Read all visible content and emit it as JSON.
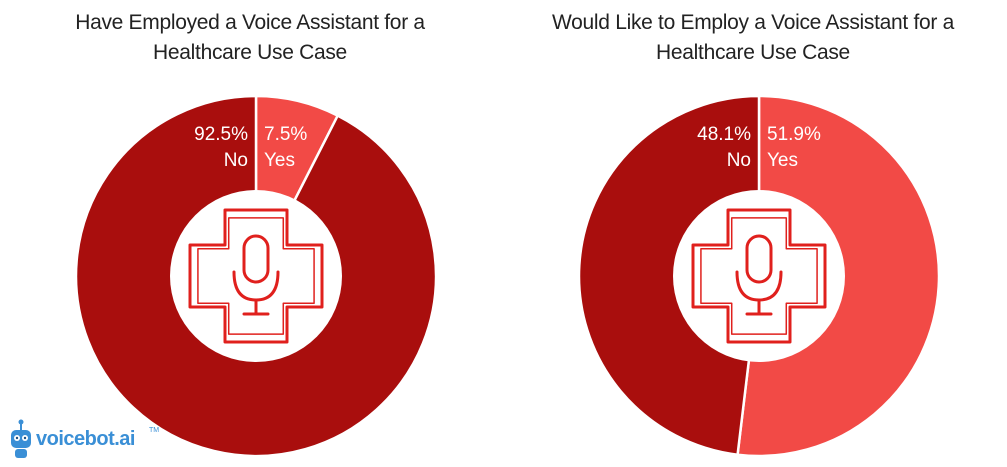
{
  "chart_data": [
    {
      "type": "pie",
      "title_lines": [
        "Have Employed a Voice Assistant for a",
        "Healthcare Use Case"
      ],
      "slices": [
        {
          "label": "Yes",
          "value": 7.5,
          "display": "7.5%",
          "color": "#f24a46"
        },
        {
          "label": "No",
          "value": 92.5,
          "display": "92.5%",
          "color": "#a90e0d"
        }
      ]
    },
    {
      "type": "pie",
      "title_lines": [
        "Would Like to Employ a Voice Assistant for a",
        "Healthcare Use Case"
      ],
      "slices": [
        {
          "label": "Yes",
          "value": 51.9,
          "display": "51.9%",
          "color": "#f24a46"
        },
        {
          "label": "No",
          "value": 48.1,
          "display": "48.1%",
          "color": "#a90e0d"
        }
      ]
    }
  ],
  "logo": {
    "text": "voicebot.ai",
    "tm": "TM"
  },
  "colors": {
    "icon": "#e0201d",
    "center": "#ffffff"
  }
}
